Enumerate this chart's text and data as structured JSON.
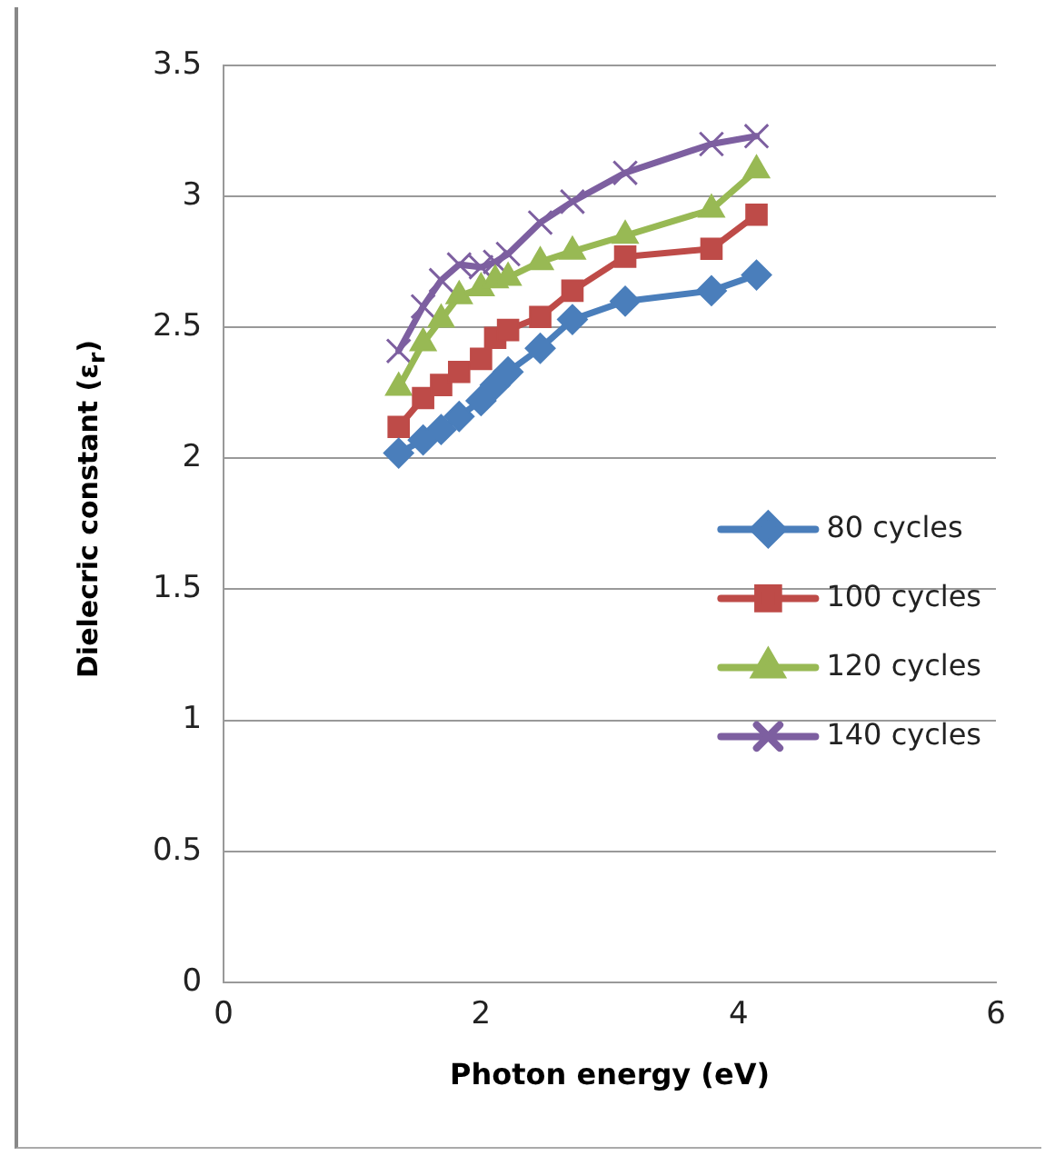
{
  "chart_data": {
    "type": "line",
    "xlabel": "Photon energy (eV)",
    "ylabel": "Dielecric constant (ε$_{r}$)",
    "xlim": [
      0,
      6
    ],
    "xticks": [
      0,
      2,
      4,
      6
    ],
    "ylim": [
      0,
      3.5
    ],
    "yticks": [
      0,
      0.5,
      1,
      1.5,
      2,
      2.5,
      3,
      3.5
    ],
    "grid": "y",
    "legend": "right",
    "x": [
      1.36,
      1.55,
      1.69,
      1.83,
      2.0,
      2.11,
      2.21,
      2.46,
      2.71,
      3.12,
      3.79,
      4.14
    ],
    "series": [
      {
        "name": "80 cycles",
        "color": "#4a7ebb",
        "marker": "diamond",
        "values": [
          2.02,
          2.07,
          2.11,
          2.16,
          2.22,
          2.28,
          2.33,
          2.42,
          2.53,
          2.6,
          2.64,
          2.7
        ]
      },
      {
        "name": "100 cycles",
        "color": "#be4b48",
        "marker": "square",
        "values": [
          2.12,
          2.23,
          2.28,
          2.33,
          2.38,
          2.46,
          2.49,
          2.54,
          2.64,
          2.77,
          2.8,
          2.93
        ]
      },
      {
        "name": "120 cycles",
        "color": "#98b954",
        "marker": "triangle",
        "values": [
          2.27,
          2.44,
          2.53,
          2.62,
          2.65,
          2.68,
          2.69,
          2.75,
          2.79,
          2.85,
          2.95,
          3.1
        ]
      },
      {
        "name": "140 cycles",
        "color": "#7d5fa0",
        "marker": "cross",
        "values": [
          2.41,
          2.58,
          2.68,
          2.74,
          2.73,
          2.75,
          2.78,
          2.9,
          2.98,
          3.09,
          3.2,
          3.23
        ]
      }
    ]
  }
}
